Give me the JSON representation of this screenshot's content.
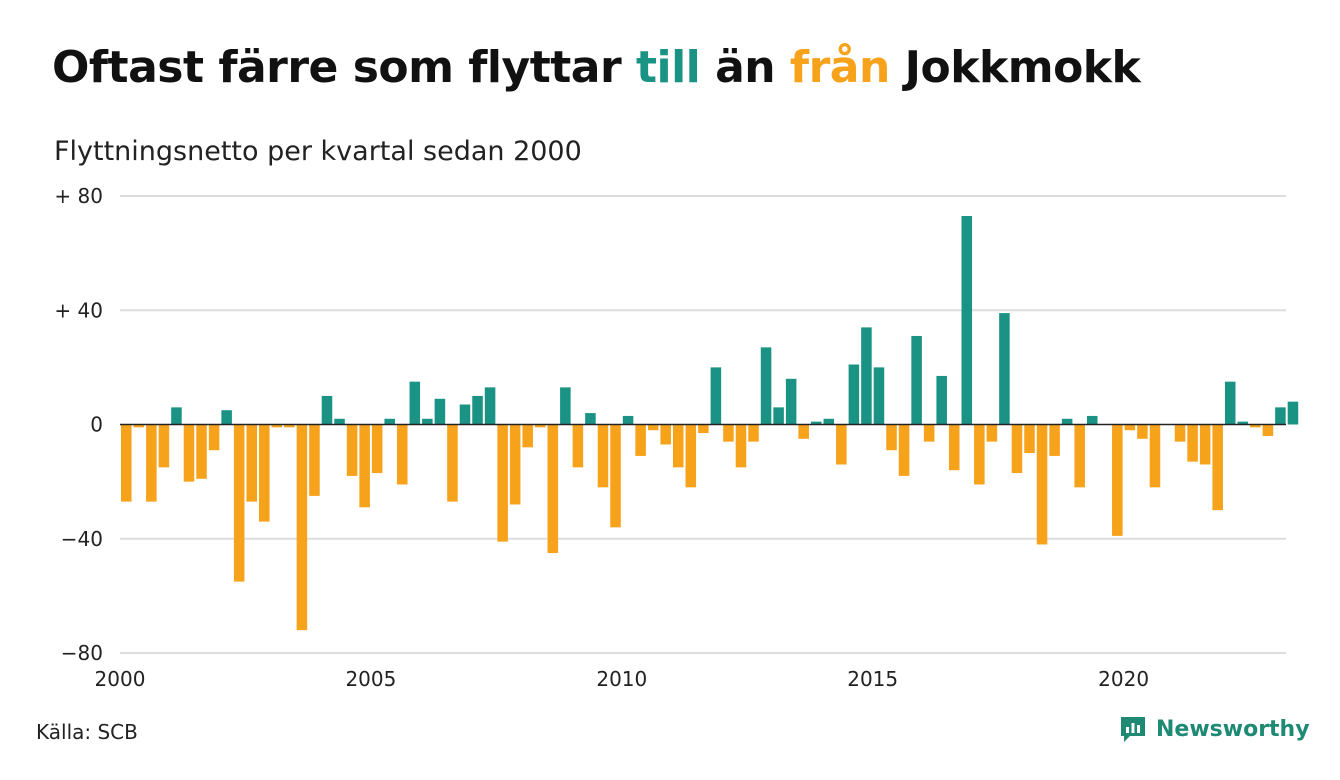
{
  "header": {
    "title_parts": [
      "Oftast färre som flyttar ",
      "till",
      " än ",
      "från",
      " Jokkmokk"
    ],
    "subtitle": "Flyttningsnetto per kvartal sedan 2000"
  },
  "colors": {
    "positive": "#1a9384",
    "negative": "#f7a21b",
    "grid": "#dddddd",
    "axis": "#222222",
    "logo": "#1f8a74"
  },
  "footer": {
    "source": "Källa: SCB",
    "brand": "Newsworthy",
    "brand_icon": "bar-chart-speech-bubble-icon"
  },
  "chart_data": {
    "type": "bar",
    "title": "Oftast färre som flyttar till än från Jokkmokk",
    "subtitle": "Flyttningsnetto per kvartal sedan 2000",
    "xlabel": "",
    "ylabel": "",
    "x_start": "2000 Q1",
    "x_end": "2023 Q2",
    "ylim": [
      -80,
      80
    ],
    "yticks": [
      80,
      40,
      0,
      -40,
      -80
    ],
    "ytick_labels": [
      "+ 80",
      "+ 40",
      "0",
      "−40",
      "−80"
    ],
    "xtick_years": [
      2000,
      2005,
      2010,
      2015,
      2020
    ],
    "grid": true,
    "legend": "none",
    "categories": [
      "2000 Q1",
      "2000 Q2",
      "2000 Q3",
      "2000 Q4",
      "2001 Q1",
      "2001 Q2",
      "2001 Q3",
      "2001 Q4",
      "2002 Q1",
      "2002 Q2",
      "2002 Q3",
      "2002 Q4",
      "2003 Q1",
      "2003 Q2",
      "2003 Q3",
      "2003 Q4",
      "2004 Q1",
      "2004 Q2",
      "2004 Q3",
      "2004 Q4",
      "2005 Q1",
      "2005 Q2",
      "2005 Q3",
      "2005 Q4",
      "2006 Q1",
      "2006 Q2",
      "2006 Q3",
      "2006 Q4",
      "2007 Q1",
      "2007 Q2",
      "2007 Q3",
      "2007 Q4",
      "2008 Q1",
      "2008 Q2",
      "2008 Q3",
      "2008 Q4",
      "2009 Q1",
      "2009 Q2",
      "2009 Q3",
      "2009 Q4",
      "2010 Q1",
      "2010 Q2",
      "2010 Q3",
      "2010 Q4",
      "2011 Q1",
      "2011 Q2",
      "2011 Q3",
      "2011 Q4",
      "2012 Q1",
      "2012 Q2",
      "2012 Q3",
      "2012 Q4",
      "2013 Q1",
      "2013 Q2",
      "2013 Q3",
      "2013 Q4",
      "2014 Q1",
      "2014 Q2",
      "2014 Q3",
      "2014 Q4",
      "2015 Q1",
      "2015 Q2",
      "2015 Q3",
      "2015 Q4",
      "2016 Q1",
      "2016 Q2",
      "2016 Q3",
      "2016 Q4",
      "2017 Q1",
      "2017 Q2",
      "2017 Q3",
      "2017 Q4",
      "2018 Q1",
      "2018 Q2",
      "2018 Q3",
      "2018 Q4",
      "2019 Q1",
      "2019 Q2",
      "2019 Q3",
      "2019 Q4",
      "2020 Q1",
      "2020 Q2",
      "2020 Q3",
      "2020 Q4",
      "2021 Q1",
      "2021 Q2",
      "2021 Q3",
      "2021 Q4",
      "2022 Q1",
      "2022 Q2",
      "2022 Q3",
      "2022 Q4",
      "2023 Q1",
      "2023 Q2"
    ],
    "values": [
      -27,
      -1,
      -27,
      -15,
      6,
      -20,
      -19,
      -9,
      5,
      -55,
      -27,
      -34,
      -1,
      -1,
      -72,
      -25,
      10,
      2,
      -18,
      -29,
      -17,
      2,
      -21,
      15,
      2,
      9,
      -27,
      7,
      10,
      13,
      -41,
      -28,
      -8,
      -1,
      -45,
      13,
      -15,
      4,
      -22,
      -36,
      3,
      -11,
      -2,
      -7,
      -15,
      -22,
      -3,
      20,
      -6,
      -15,
      -6,
      27,
      6,
      16,
      -5,
      1,
      2,
      -14,
      21,
      34,
      20,
      -9,
      -18,
      31,
      -6,
      17,
      -16,
      73,
      -21,
      -6,
      39,
      -17,
      -10,
      -42,
      -11,
      2,
      -22,
      3,
      0,
      -39,
      -2,
      -5,
      -22,
      0,
      -6,
      -13,
      -14,
      -30,
      15,
      1,
      -1,
      -4,
      6,
      8
    ]
  }
}
